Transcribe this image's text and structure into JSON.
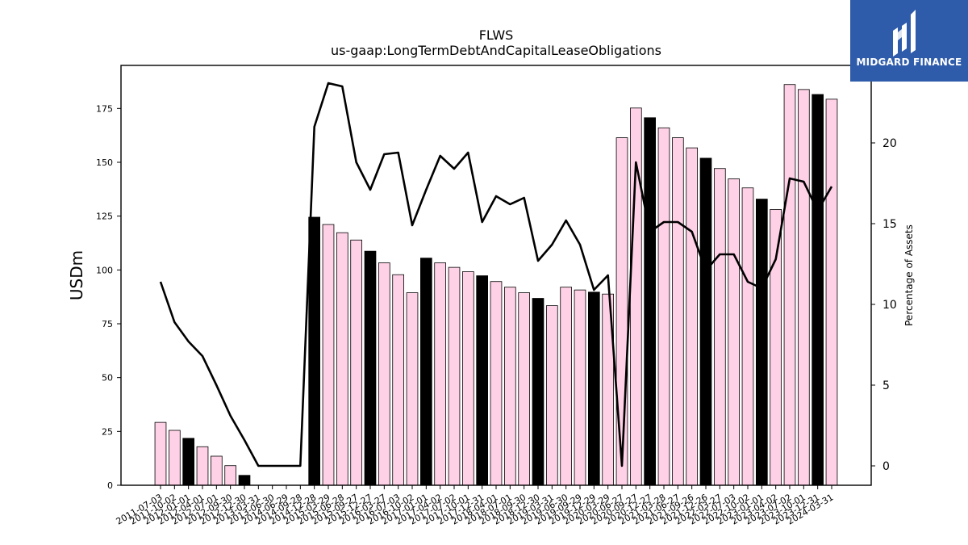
{
  "colors": {
    "bar_q4": "#000000",
    "bar_other": "#ffd1e6",
    "line": "#000000",
    "logo_bg": "#2f5caa"
  },
  "brand": {
    "name": "MIDGARD FINANCE",
    "icon": "midgard-logo-icon"
  },
  "chart_data": {
    "type": "bar",
    "title": "FLWS",
    "subtitle": "us-gaap:LongTermDebtAndCapitalLeaseObligations",
    "ylabel": "USDm",
    "y2label": "Percentage of Assets",
    "ylim": [
      0,
      195
    ],
    "y2lim": [
      -1.2,
      24.8
    ],
    "yticks": [
      0,
      25,
      50,
      75,
      100,
      125,
      150,
      175
    ],
    "y2ticks": [
      0,
      5,
      10,
      15,
      20
    ],
    "categories": [
      "2011-07-03",
      "2011-10-02",
      "2012-01-01",
      "2012-04-01",
      "2012-07-01",
      "2012-09-30",
      "2012-12-30",
      "2013-03-31",
      "2013-06-30",
      "2014-06-29",
      "2014-09-28",
      "2014-12-28",
      "2015-03-29",
      "2015-06-28",
      "2015-09-27",
      "2015-12-27",
      "2016-03-27",
      "2016-07-03",
      "2016-10-02",
      "2017-01-01",
      "2017-04-02",
      "2017-07-02",
      "2017-10-01",
      "2017-12-31",
      "2018-04-01",
      "2018-07-01",
      "2018-09-30",
      "2018-12-30",
      "2019-03-31",
      "2019-06-30",
      "2019-09-29",
      "2019-12-29",
      "2020-03-29",
      "2020-06-27",
      "2020-09-27",
      "2020-12-27",
      "2021-03-28",
      "2021-06-27",
      "2021-09-26",
      "2021-12-26",
      "2022-03-27",
      "2022-07-03",
      "2022-10-02",
      "2023-01-01",
      "2023-04-02",
      "2023-07-02",
      "2023-10-01",
      "2023-12-31",
      "2024-03-31"
    ],
    "series": [
      {
        "kind": "bar",
        "values": [
          29.2,
          25.5,
          21.8,
          17.9,
          13.5,
          9.1,
          4.6,
          0,
          0,
          0,
          0,
          124.5,
          121.1,
          117.3,
          113.9,
          108.7,
          103.3,
          97.8,
          89.4,
          105.5,
          103.3,
          101.2,
          99.2,
          97.3,
          94.6,
          92.0,
          89.4,
          86.8,
          83.4,
          92.0,
          90.7,
          89.7,
          88.8,
          161.4,
          175.2,
          170.7,
          166.0,
          161.4,
          156.7,
          151.9,
          147.1,
          142.3,
          138.1,
          132.9,
          128.1,
          186.1,
          183.8,
          181.5,
          179.3
        ],
        "highlight": [
          false,
          false,
          true,
          false,
          false,
          false,
          true,
          false,
          false,
          false,
          false,
          true,
          false,
          false,
          false,
          true,
          false,
          false,
          false,
          true,
          false,
          false,
          false,
          true,
          false,
          false,
          false,
          true,
          false,
          false,
          false,
          true,
          false,
          false,
          false,
          true,
          false,
          false,
          false,
          true,
          false,
          false,
          false,
          true,
          false,
          false,
          false,
          true,
          false
        ]
      },
      {
        "kind": "line",
        "axis": "right",
        "values": [
          11.4,
          8.9,
          7.7,
          6.8,
          5.0,
          3.1,
          1.6,
          0,
          0,
          0,
          0,
          21.0,
          23.7,
          23.5,
          18.8,
          17.1,
          19.3,
          19.4,
          14.9,
          17.1,
          19.2,
          18.4,
          19.4,
          15.1,
          16.7,
          16.2,
          16.6,
          12.7,
          13.7,
          15.2,
          13.7,
          10.9,
          11.8,
          0,
          18.8,
          14.5,
          15.1,
          15.1,
          14.5,
          12.1,
          13.1,
          13.1,
          11.4,
          11.0,
          12.8,
          17.8,
          17.6,
          15.8,
          17.3
        ]
      }
    ]
  }
}
